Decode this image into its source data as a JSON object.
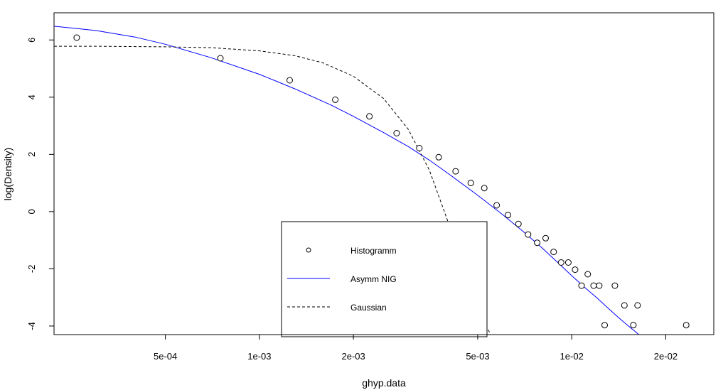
{
  "chart_data": {
    "type": "scatter",
    "xlabel": "ghyp.data",
    "ylabel": "log(Density)",
    "x_scale": "log",
    "xlim": [
      0.00022,
      0.0285
    ],
    "ylim": [
      -4.3,
      6.95
    ],
    "x_ticks": [
      {
        "value": 0.0005,
        "label": "5e-04"
      },
      {
        "value": 0.001,
        "label": "1e-03"
      },
      {
        "value": 0.002,
        "label": "2e-03"
      },
      {
        "value": 0.005,
        "label": "5e-03"
      },
      {
        "value": 0.01,
        "label": "1e-02"
      },
      {
        "value": 0.02,
        "label": "2e-02"
      }
    ],
    "y_ticks": [
      {
        "value": -4,
        "label": "-4"
      },
      {
        "value": -2,
        "label": "-2"
      },
      {
        "value": 0,
        "label": "0"
      },
      {
        "value": 2,
        "label": "2"
      },
      {
        "value": 4,
        "label": "4"
      },
      {
        "value": 6,
        "label": "6"
      }
    ],
    "grid": false,
    "legend_position": "bottom-center",
    "series": [
      {
        "name": "Histogramm",
        "kind": "points",
        "marker": "open-circle",
        "color": "#000000",
        "points": [
          [
            0.00026,
            6.08
          ],
          [
            0.00075,
            5.36
          ],
          [
            0.00125,
            4.59
          ],
          [
            0.00175,
            3.91
          ],
          [
            0.00225,
            3.33
          ],
          [
            0.00275,
            2.74
          ],
          [
            0.00325,
            2.22
          ],
          [
            0.00375,
            1.9
          ],
          [
            0.00425,
            1.41
          ],
          [
            0.00475,
            1.0
          ],
          [
            0.00525,
            0.82
          ],
          [
            0.00575,
            0.22
          ],
          [
            0.00625,
            -0.12
          ],
          [
            0.00675,
            -0.43
          ],
          [
            0.00725,
            -0.8
          ],
          [
            0.00775,
            -1.09
          ],
          [
            0.00825,
            -0.93
          ],
          [
            0.00875,
            -1.41
          ],
          [
            0.00925,
            -1.78
          ],
          [
            0.00975,
            -1.78
          ],
          [
            0.01025,
            -2.03
          ],
          [
            0.01075,
            -2.59
          ],
          [
            0.01125,
            -2.19
          ],
          [
            0.01175,
            -2.59
          ],
          [
            0.01225,
            -2.59
          ],
          [
            0.01275,
            -3.97
          ],
          [
            0.01375,
            -2.59
          ],
          [
            0.01475,
            -3.28
          ],
          [
            0.01575,
            -3.97
          ],
          [
            0.01625,
            -3.28
          ],
          [
            0.02325,
            -3.97
          ]
        ]
      },
      {
        "name": "Asymm NIG",
        "kind": "line",
        "dash": "solid",
        "color": "#0000ff",
        "x": [
          0.00022,
          0.0003,
          0.0004,
          0.0005,
          0.0007,
          0.001,
          0.0013,
          0.0017,
          0.002,
          0.0025,
          0.003,
          0.0035,
          0.004,
          0.005,
          0.006,
          0.007,
          0.008,
          0.009,
          0.01,
          0.011,
          0.012,
          0.013,
          0.014,
          0.015,
          0.016,
          0.017
        ],
        "y": [
          6.48,
          6.33,
          6.1,
          5.85,
          5.38,
          4.8,
          4.29,
          3.72,
          3.33,
          2.76,
          2.27,
          1.8,
          1.35,
          0.57,
          -0.1,
          -0.7,
          -1.25,
          -1.77,
          -2.24,
          -2.65,
          -3.0,
          -3.35,
          -3.67,
          -3.95,
          -4.2,
          -4.45
        ]
      },
      {
        "name": "Gaussian",
        "kind": "line",
        "dash": "dashed",
        "color": "#000000",
        "x": [
          0.00022,
          0.0003,
          0.0005,
          0.0007,
          0.001,
          0.0013,
          0.0016,
          0.002,
          0.0025,
          0.003,
          0.0035,
          0.004,
          0.0045,
          0.005,
          0.0055,
          0.0056
        ],
        "y": [
          5.78,
          5.78,
          5.76,
          5.73,
          5.62,
          5.45,
          5.2,
          4.73,
          3.95,
          2.87,
          1.45,
          -0.3,
          -2.3,
          -3.4,
          -4.3,
          -4.45
        ]
      }
    ],
    "legend": {
      "entries": [
        "Histogramm",
        "Asymm NIG",
        "Gaussian"
      ]
    }
  }
}
